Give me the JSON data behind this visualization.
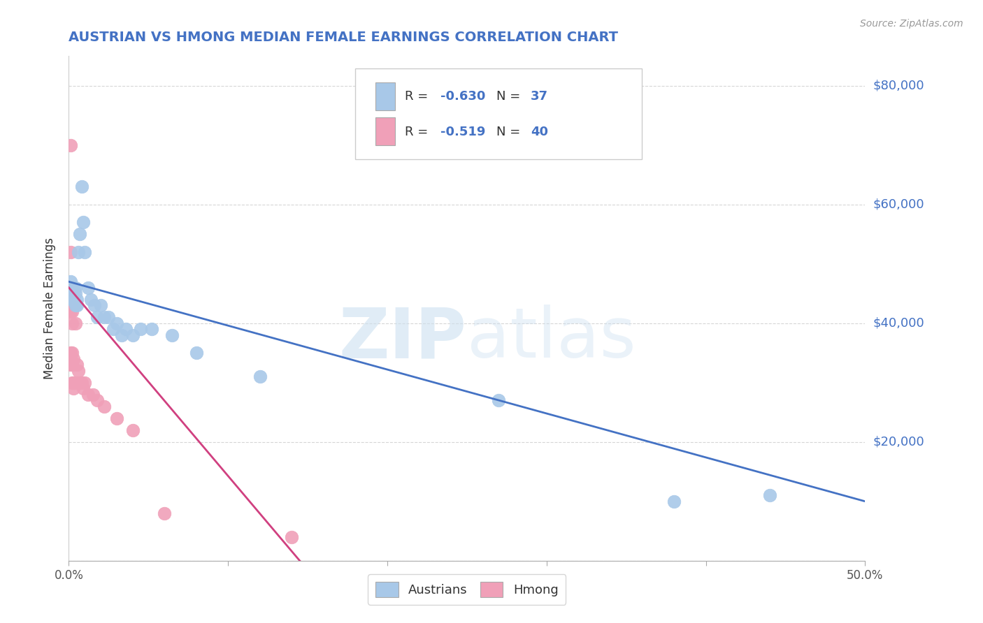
{
  "title": "AUSTRIAN VS HMONG MEDIAN FEMALE EARNINGS CORRELATION CHART",
  "source": "Source: ZipAtlas.com",
  "ylabel": "Median Female Earnings",
  "y_ticks": [
    0,
    20000,
    40000,
    60000,
    80000
  ],
  "y_tick_labels": [
    "",
    "$20,000",
    "$40,000",
    "$60,000",
    "$80,000"
  ],
  "x_min": 0.0,
  "x_max": 0.5,
  "y_min": 0,
  "y_max": 85000,
  "watermark_zip": "ZIP",
  "watermark_atlas": "atlas",
  "legend_r1": "R = -0.630",
  "legend_n1": "N = 37",
  "legend_r2": "R = -0.519",
  "legend_n2": "N = 40",
  "austrian_color": "#a8c8e8",
  "hmong_color": "#f0a0b8",
  "austrian_line_color": "#4472c4",
  "hmong_line_color": "#d04080",
  "title_color": "#4472c4",
  "right_label_color": "#4472c4",
  "background_color": "#ffffff",
  "austrian_x": [
    0.001,
    0.002,
    0.002,
    0.002,
    0.003,
    0.003,
    0.003,
    0.004,
    0.004,
    0.004,
    0.005,
    0.005,
    0.006,
    0.007,
    0.008,
    0.009,
    0.01,
    0.012,
    0.014,
    0.016,
    0.018,
    0.02,
    0.022,
    0.025,
    0.028,
    0.03,
    0.033,
    0.036,
    0.04,
    0.045,
    0.052,
    0.065,
    0.08,
    0.12,
    0.27,
    0.38,
    0.44
  ],
  "austrian_y": [
    47000,
    46000,
    45000,
    44000,
    46000,
    45000,
    44000,
    46000,
    45000,
    43000,
    44000,
    43000,
    52000,
    55000,
    63000,
    57000,
    52000,
    46000,
    44000,
    43000,
    41000,
    43000,
    41000,
    41000,
    39000,
    40000,
    38000,
    39000,
    38000,
    39000,
    39000,
    38000,
    35000,
    31000,
    27000,
    10000,
    11000
  ],
  "hmong_x": [
    0.001,
    0.001,
    0.001,
    0.001,
    0.001,
    0.001,
    0.001,
    0.001,
    0.001,
    0.001,
    0.002,
    0.002,
    0.002,
    0.002,
    0.002,
    0.002,
    0.002,
    0.002,
    0.002,
    0.003,
    0.003,
    0.003,
    0.003,
    0.003,
    0.004,
    0.004,
    0.005,
    0.006,
    0.007,
    0.008,
    0.009,
    0.01,
    0.012,
    0.015,
    0.018,
    0.022,
    0.03,
    0.04,
    0.06,
    0.14
  ],
  "hmong_y": [
    70000,
    52000,
    46000,
    45000,
    44000,
    43000,
    42000,
    35000,
    34000,
    33000,
    46000,
    45000,
    44000,
    43000,
    42000,
    40000,
    35000,
    33000,
    30000,
    44000,
    43000,
    34000,
    30000,
    29000,
    40000,
    30000,
    33000,
    32000,
    30000,
    30000,
    29000,
    30000,
    28000,
    28000,
    27000,
    26000,
    24000,
    22000,
    8000,
    4000
  ],
  "blue_line_x": [
    0.0,
    0.5
  ],
  "blue_line_y": [
    47000,
    10000
  ],
  "pink_line_x": [
    0.0,
    0.145
  ],
  "pink_line_y": [
    46000,
    0
  ]
}
